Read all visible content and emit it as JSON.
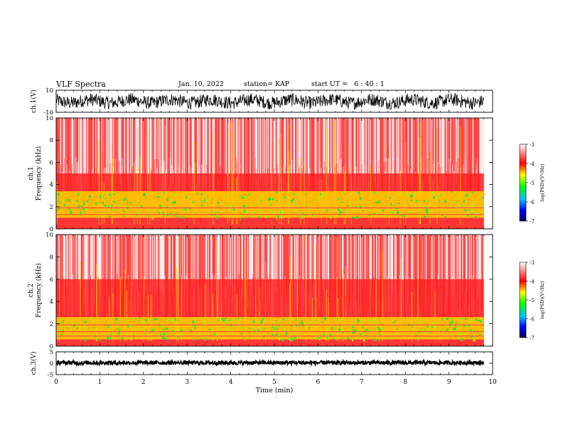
{
  "header": {
    "title": "VLF Spectra",
    "date": "Jan. 10, 2022",
    "station": "station= KAP",
    "start": "start UT =   6 : 40 : 1"
  },
  "chart_data": [
    {
      "type": "line",
      "panel": "ch1-waveform",
      "ylabel": "ch.1(V)",
      "ylim": [
        -10,
        10
      ],
      "yticks": [
        "10",
        "-10"
      ],
      "xlim": [
        0,
        10
      ],
      "color": "#000000",
      "xmax_data": 9.8
    },
    {
      "type": "heatmap",
      "panel": "ch1-spectrogram",
      "ylabel": "ch.1",
      "ylabel2": "Frequency (kHz)",
      "ylim": [
        0,
        10
      ],
      "yticks": [
        "0",
        "2",
        "4",
        "6",
        "8",
        "10"
      ],
      "xlim": [
        0,
        10
      ],
      "xmax_data": 9.8,
      "colorbar": {
        "label": "log(PSD)(V²/Hz)",
        "range": [
          -7,
          -3
        ],
        "ticks": [
          "-3",
          "-4",
          "-5",
          "-6",
          "-7"
        ]
      }
    },
    {
      "type": "heatmap",
      "panel": "ch2-spectrogram",
      "ylabel": "ch.2",
      "ylabel2": "Frequency (kHz)",
      "ylim": [
        0,
        10
      ],
      "yticks": [
        "0",
        "2",
        "4",
        "6",
        "8",
        "10"
      ],
      "xlim": [
        0,
        10
      ],
      "xmax_data": 9.8,
      "colorbar": {
        "label": "log(PSD)(V²/Hz)",
        "range": [
          -7,
          -3
        ],
        "ticks": [
          "-3",
          "-4",
          "-5",
          "-6",
          "-7"
        ]
      }
    },
    {
      "type": "line",
      "panel": "ch3-waveform",
      "ylabel": "ch.3(V)",
      "ylim": [
        -5,
        5
      ],
      "yticks": [
        "5",
        "0",
        "-5"
      ],
      "xlim": [
        0,
        10
      ],
      "xmax_data": 9.8,
      "color": "#000000"
    }
  ],
  "xaxis": {
    "label": "Time (min)",
    "ticks": [
      "0",
      "1",
      "2",
      "3",
      "4",
      "5",
      "6",
      "7",
      "8",
      "9",
      "10"
    ]
  }
}
